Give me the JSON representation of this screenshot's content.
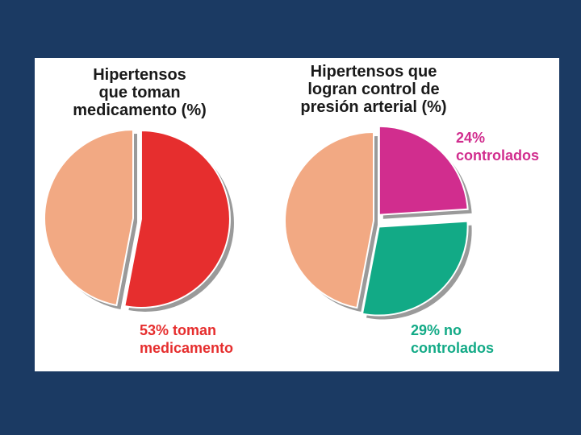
{
  "colors": {
    "background": "#1b3a63",
    "panel": "#ffffff",
    "shadow": "#9a9a9a",
    "peach": "#f2a983",
    "red": "#e62e2e",
    "magenta": "#d12d8e",
    "green": "#12aa86"
  },
  "chart_data": [
    {
      "type": "pie",
      "title": "Hipertensos\nque toman\nmedicamento (%)",
      "slices": [
        {
          "label": "53% toman\nmedicamento",
          "value": 53,
          "color": "#e62e2e",
          "exploded": true
        },
        {
          "label": "",
          "value": 47,
          "color": "#f2a983",
          "exploded": false
        }
      ]
    },
    {
      "type": "pie",
      "title": "Hipertensos que\nlogran control de\npresión arterial (%)",
      "slices": [
        {
          "label": "24%\ncontrolados",
          "value": 24,
          "color": "#d12d8e",
          "exploded": true
        },
        {
          "label": "29% no\ncontrolados",
          "value": 29,
          "color": "#12aa86",
          "exploded": true
        },
        {
          "label": "",
          "value": 47,
          "color": "#f2a983",
          "exploded": false
        }
      ]
    }
  ]
}
